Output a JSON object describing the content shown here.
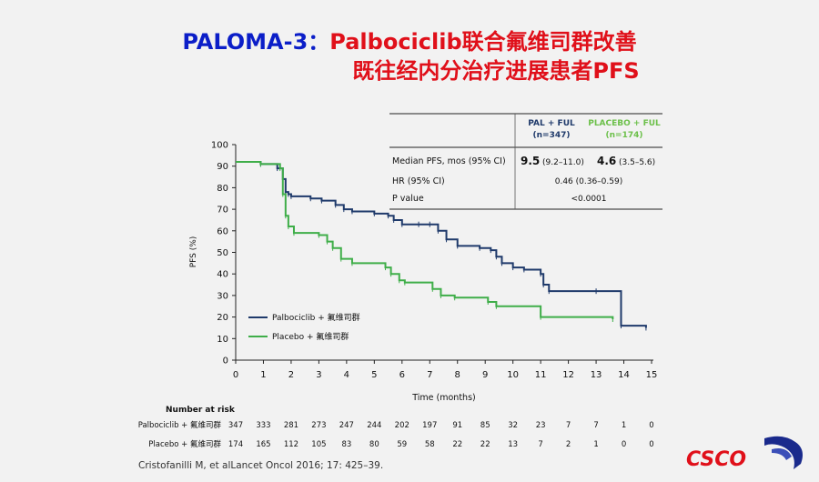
{
  "slide": {
    "title_line1_blue": "PALOMA-3：",
    "title_line1_red": "Palbociclib联合氟维司群改善",
    "title_line2": "既往经内分治疗进展患者PFS",
    "citation": "Cristofanilli M, et alLancet Oncol 2016; 17: 425–39.",
    "logo_text": "CSCO"
  },
  "stats_table": {
    "col1_header_line1": "PAL + FUL",
    "col1_header_line2": "(n=347)",
    "col2_header_line1": "PLACEBO + FUL",
    "col2_header_line2": "(n=174)",
    "row1_label": "Median PFS, mos (95% CI)",
    "row1_col1_main": "9.5",
    "row1_col1_ci": "(9.2–11.0)",
    "row1_col2_main": "4.6",
    "row1_col2_ci": "(3.5–5.6)",
    "row2_label": "HR (95% CI)",
    "row2_value": "0.46 (0.36–0.59)",
    "row3_label": "P value",
    "row3_value": "<0.0001",
    "colors": {
      "col1": "#1f3a6b",
      "col2": "#6cc04a"
    }
  },
  "risk_table": {
    "header": "Number at risk",
    "rows": [
      {
        "label": "Palbociclib + 氟维司群",
        "values": [
          "347",
          "333",
          "281",
          "273",
          "247",
          "244",
          "202",
          "197",
          "91",
          "85",
          "32",
          "23",
          "7",
          "7",
          "1",
          "0"
        ]
      },
      {
        "label": "Placebo + 氟维司群",
        "values": [
          "174",
          "165",
          "112",
          "105",
          "83",
          "80",
          "59",
          "58",
          "22",
          "22",
          "13",
          "7",
          "2",
          "1",
          "0",
          "0"
        ]
      }
    ]
  },
  "chart_data": {
    "type": "line",
    "subtype": "kaplan-meier step",
    "xlabel": "Time (months)",
    "ylabel": "PFS (%)",
    "xlim": [
      0,
      15
    ],
    "ylim": [
      0,
      100
    ],
    "xticks": [
      0,
      1,
      2,
      3,
      4,
      5,
      6,
      7,
      8,
      9,
      10,
      11,
      12,
      13,
      14,
      15
    ],
    "yticks": [
      0,
      10,
      20,
      30,
      40,
      50,
      60,
      70,
      80,
      90,
      100
    ],
    "grid": false,
    "legend_position": "bottom-left",
    "series": [
      {
        "name": "Palbociclib + 氟维司群",
        "color": "#1f3a6b",
        "x": [
          0,
          0.9,
          1.5,
          1.7,
          1.8,
          1.9,
          2.0,
          2.7,
          3.1,
          3.6,
          3.9,
          4.2,
          5.0,
          5.5,
          5.7,
          6.0,
          6.6,
          7.0,
          7.3,
          7.6,
          8.0,
          8.8,
          9.2,
          9.4,
          9.6,
          10.0,
          10.4,
          11.0,
          11.1,
          11.3,
          13.0,
          13.9,
          14.8
        ],
        "y": [
          92,
          91,
          89,
          84,
          78,
          77,
          76,
          75,
          74,
          72,
          70,
          69,
          68,
          67,
          65,
          63,
          63,
          63,
          60,
          56,
          53,
          52,
          51,
          48,
          45,
          43,
          42,
          40,
          35,
          32,
          32,
          16,
          15
        ]
      },
      {
        "name": "Placebo + 氟维司群",
        "color": "#3fae49",
        "x": [
          0,
          0.9,
          1.6,
          1.7,
          1.8,
          1.9,
          2.1,
          3.0,
          3.3,
          3.5,
          3.8,
          4.2,
          5.4,
          5.6,
          5.9,
          6.1,
          7.1,
          7.4,
          7.9,
          9.1,
          9.4,
          11.0,
          13.6
        ],
        "y": [
          92,
          91,
          89,
          77,
          67,
          62,
          59,
          58,
          55,
          52,
          47,
          45,
          43,
          40,
          37,
          36,
          33,
          30,
          29,
          27,
          25,
          20,
          19
        ]
      }
    ]
  }
}
